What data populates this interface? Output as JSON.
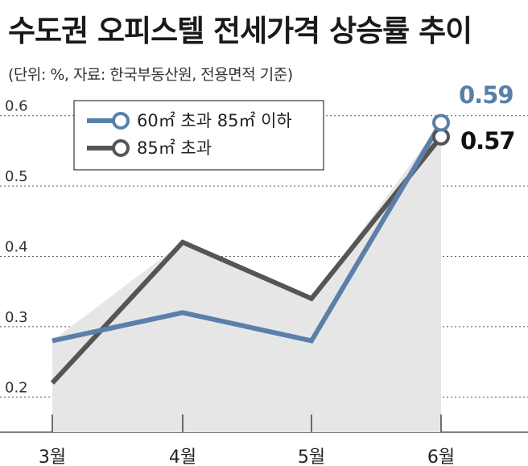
{
  "header": {
    "title": "수도권 오피스텔 전세가격 상승률 추이",
    "subtitle": "(단위: %, 자료: 한국부동산원, 전용면적 기준)"
  },
  "chart_data": {
    "type": "line",
    "title": "수도권 오피스텔 전세가격 상승률 추이",
    "subtitle": "(단위: %, 자료: 한국부동산원, 전용면적 기준)",
    "categories": [
      "3월",
      "4월",
      "5월",
      "6월"
    ],
    "ylim": [
      0.15,
      0.65
    ],
    "yticks": [
      "0.2",
      "0.3",
      "0.4",
      "0.5",
      "0.6"
    ],
    "grid": true,
    "legend": "top-left",
    "series": [
      {
        "name": "60㎡ 초과 85㎡ 이하",
        "values": [
          0.28,
          0.32,
          0.28,
          0.59
        ],
        "color": "#5a7fa8",
        "end_label": "0.59"
      },
      {
        "name": "85㎡ 초과",
        "values": [
          0.22,
          0.42,
          0.34,
          0.57
        ],
        "color": "#555555",
        "end_label": "0.57"
      }
    ],
    "area_fill_color": "#e6e6e6"
  }
}
